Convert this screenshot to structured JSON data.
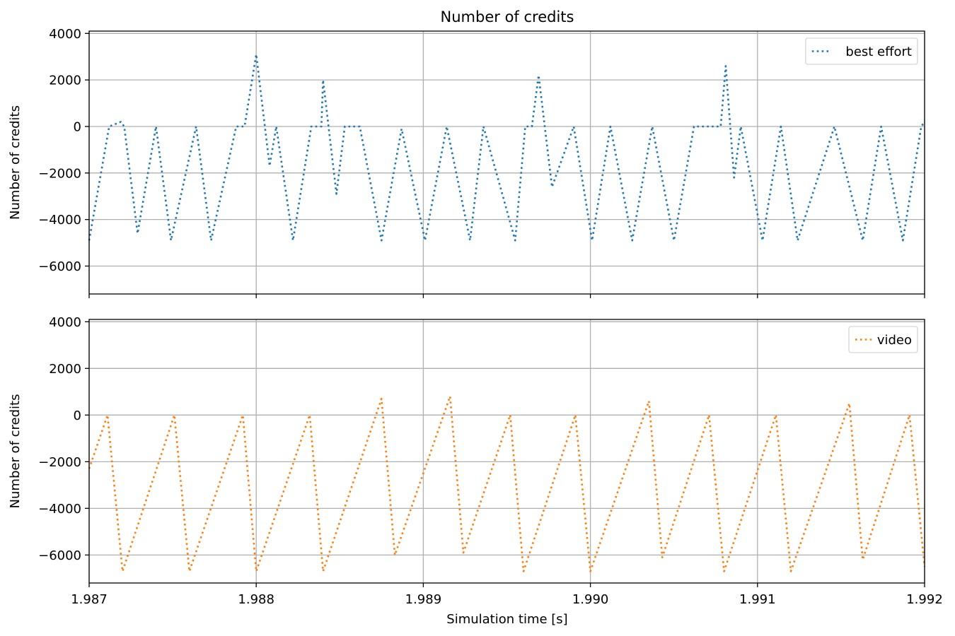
{
  "chart_data": {
    "title": "Number of credits",
    "xlabel": "Simulation time [s]",
    "x_ticks": [
      "1.987",
      "1.988",
      "1.989",
      "1.990",
      "1.991",
      "1.992"
    ],
    "x_tick_values": [
      1.987,
      1.988,
      1.989,
      1.99,
      1.991,
      1.992
    ],
    "xlim": [
      1.987,
      1.992
    ],
    "grid": true,
    "panels": [
      {
        "type": "line",
        "ylabel": "Number of credits",
        "ylim": [
          -7200,
          4100
        ],
        "y_ticks": [
          "4000",
          "2000",
          "0",
          "−2000",
          "−4000",
          "−6000"
        ],
        "y_tick_values": [
          4000,
          2000,
          0,
          -2000,
          -4000,
          -6000
        ],
        "show_x_tick_labels": false,
        "legend_position": "top-right",
        "series": [
          {
            "name": "best effort",
            "color": "#1f77b4",
            "line_style": "dotted",
            "x": [
              1.987,
              1.98712,
              1.98712,
              1.98719,
              1.98721,
              1.98729,
              1.9874,
              1.98749,
              1.98764,
              1.98773,
              1.98788,
              1.98793,
              1.988,
              1.98808,
              1.98812,
              1.98822,
              1.98833,
              1.98839,
              1.9884,
              1.98848,
              1.98853,
              1.98862,
              1.98875,
              1.98887,
              1.98901,
              1.98914,
              1.98928,
              1.98936,
              1.98955,
              1.98961,
              1.98965,
              1.98969,
              1.98977,
              1.9899,
              1.99001,
              1.99012,
              1.99025,
              1.99037,
              1.9905,
              1.99062,
              1.99078,
              1.99081,
              1.99086,
              1.9909,
              1.99103,
              1.99114,
              1.99124,
              1.99146,
              1.99163,
              1.99174,
              1.99187,
              1.99198,
              1.992
            ],
            "y": [
              -4900,
              0,
              0,
              200,
              0,
              -4600,
              0,
              -4900,
              0,
              -4900,
              0,
              0,
              3100,
              -1700,
              0,
              -4900,
              0,
              0,
              2000,
              -2900,
              0,
              0,
              -4900,
              -100,
              -4900,
              0,
              -4900,
              0,
              -4900,
              0,
              0,
              2200,
              -2600,
              0,
              -4900,
              0,
              -4900,
              0,
              -4900,
              0,
              0,
              2600,
              -2200,
              0,
              -4900,
              0,
              -4900,
              0,
              -4900,
              0,
              -4900,
              0,
              200
            ]
          }
        ]
      },
      {
        "type": "line",
        "ylabel": "Number of credits",
        "ylim": [
          -7200,
          4100
        ],
        "y_ticks": [
          "4000",
          "2000",
          "0",
          "−2000",
          "−4000",
          "−6000"
        ],
        "y_tick_values": [
          4000,
          2000,
          0,
          -2000,
          -4000,
          -6000
        ],
        "show_x_tick_labels": true,
        "legend_position": "top-right",
        "series": [
          {
            "name": "video",
            "color": "#ff7f0e",
            "line_style": "dotted",
            "x": [
              1.987,
              1.98711,
              1.9872,
              1.98751,
              1.9876,
              1.98792,
              1.988,
              1.98832,
              1.9884,
              1.98875,
              1.98883,
              1.98916,
              1.98924,
              1.98952,
              1.9896,
              1.98991,
              1.99,
              1.99035,
              1.99043,
              1.99071,
              1.9908,
              1.99111,
              1.9912,
              1.99155,
              1.99163,
              1.99191,
              1.992
            ],
            "y": [
              -2300,
              0,
              -6700,
              0,
              -6700,
              0,
              -6700,
              0,
              -6700,
              700,
              -6000,
              800,
              -5900,
              0,
              -6700,
              0,
              -6700,
              600,
              -6100,
              0,
              -6700,
              0,
              -6700,
              500,
              -6200,
              0,
              -6500
            ]
          }
        ]
      }
    ]
  }
}
